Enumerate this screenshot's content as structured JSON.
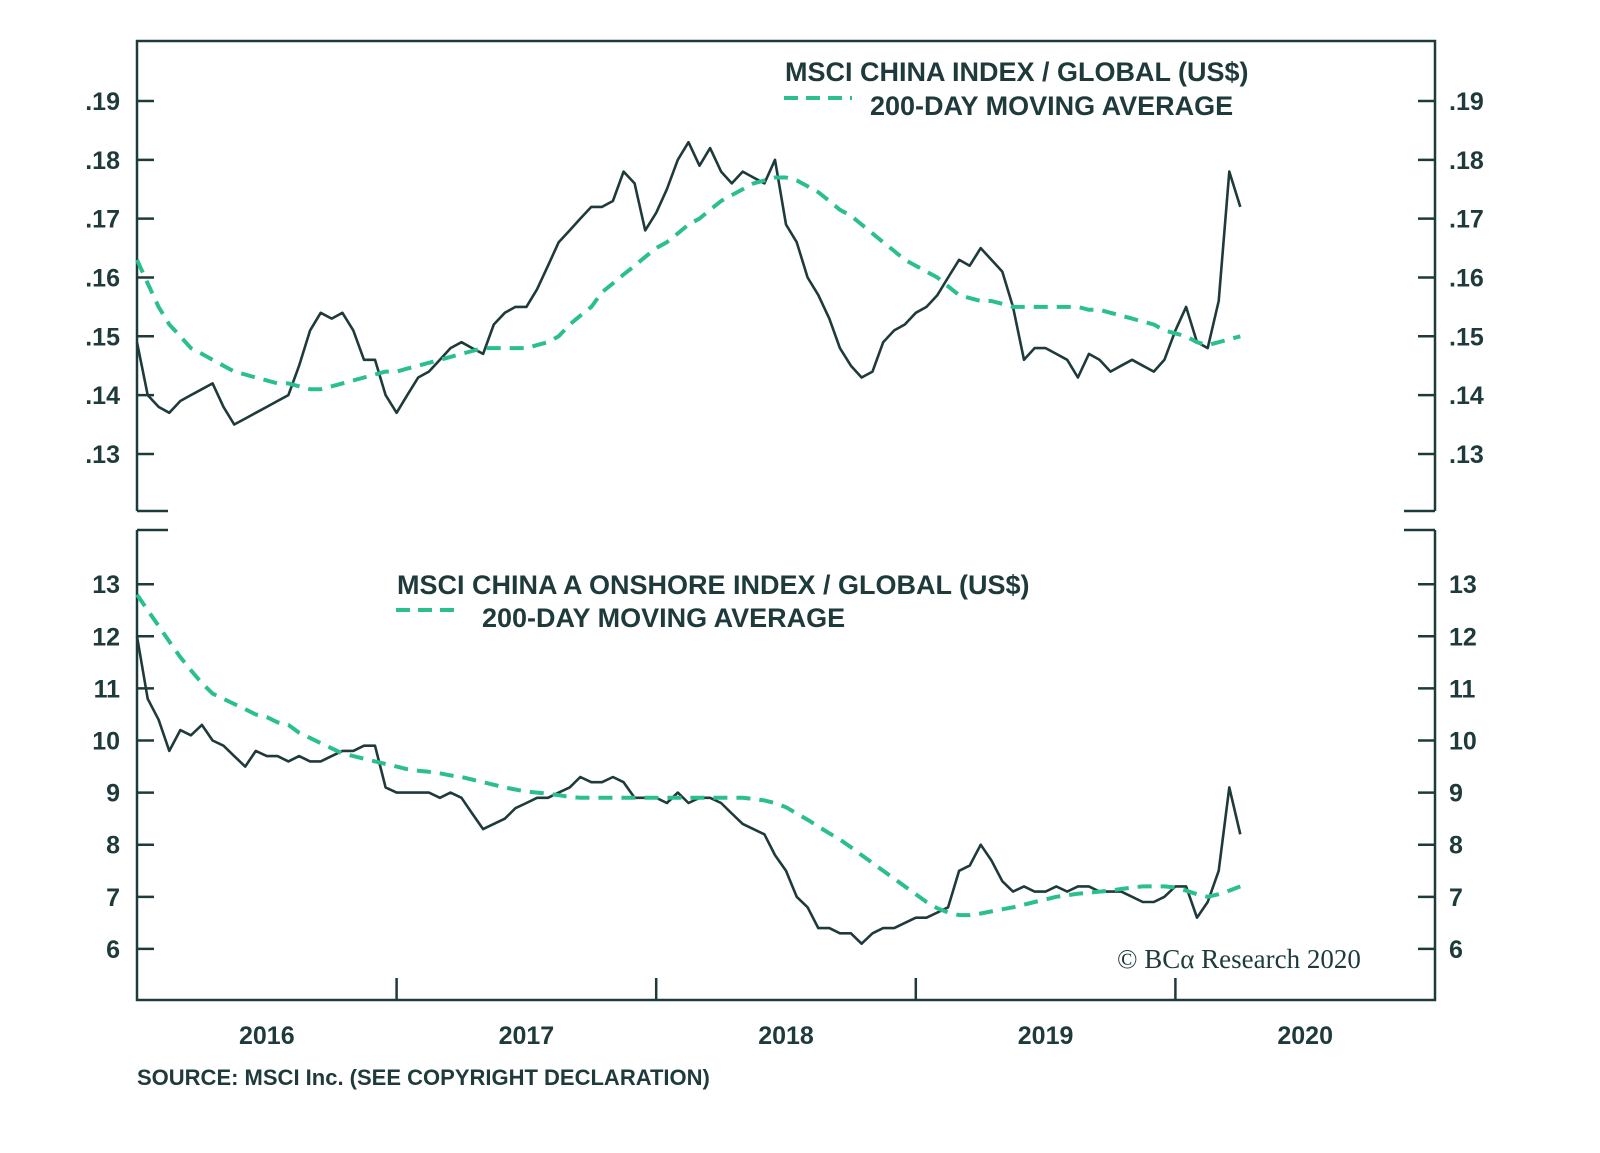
{
  "chart_data": [
    {
      "type": "line",
      "title": "",
      "legend": [
        "MSCI CHINA INDEX / GLOBAL (US$)",
        "200-DAY MOVING AVERAGE"
      ],
      "legend_placement": "top-right",
      "ylim": [
        0.1203,
        0.2002
      ],
      "xlim": [
        "2016-01-01",
        "2021-01-01"
      ],
      "yticks": [
        0.19,
        0.18,
        0.17,
        0.16,
        0.15,
        0.14,
        0.13
      ],
      "ytick_labels": [
        ".19",
        ".18",
        ".17",
        ".16",
        ".15",
        ".14",
        ".13"
      ],
      "grid": false,
      "series": [
        {
          "name": "MSCI CHINA INDEX / GLOBAL (US$)",
          "color": "#1e3a3b",
          "style": "solid",
          "values": [
            0.149,
            0.14,
            0.138,
            0.137,
            0.139,
            0.14,
            0.141,
            0.142,
            0.138,
            0.135,
            0.136,
            0.137,
            0.138,
            0.139,
            0.14,
            0.145,
            0.151,
            0.154,
            0.153,
            0.154,
            0.151,
            0.146,
            0.146,
            0.14,
            0.137,
            0.14,
            0.143,
            0.144,
            0.146,
            0.148,
            0.149,
            0.148,
            0.147,
            0.152,
            0.154,
            0.155,
            0.155,
            0.158,
            0.162,
            0.166,
            0.168,
            0.17,
            0.172,
            0.172,
            0.173,
            0.178,
            0.176,
            0.168,
            0.171,
            0.175,
            0.18,
            0.183,
            0.179,
            0.182,
            0.178,
            0.176,
            0.178,
            0.177,
            0.176,
            0.18,
            0.169,
            0.166,
            0.16,
            0.157,
            0.153,
            0.148,
            0.145,
            0.143,
            0.144,
            0.149,
            0.151,
            0.152,
            0.154,
            0.155,
            0.157,
            0.16,
            0.163,
            0.162,
            0.165,
            0.163,
            0.161,
            0.155,
            0.146,
            0.148,
            0.148,
            0.147,
            0.146,
            0.143,
            0.147,
            0.146,
            0.144,
            0.145,
            0.146,
            0.145,
            0.144,
            0.146,
            0.151,
            0.155,
            0.149,
            0.148,
            0.156,
            0.178,
            0.172
          ]
        },
        {
          "name": "200-DAY MOVING AVERAGE",
          "color": "#2bbf8e",
          "style": "dashed",
          "values": [
            0.163,
            0.159,
            0.155,
            0.152,
            0.15,
            0.148,
            0.147,
            0.146,
            0.145,
            0.144,
            0.1435,
            0.143,
            0.1425,
            0.142,
            0.142,
            0.1415,
            0.141,
            0.141,
            0.1415,
            0.142,
            0.1425,
            0.143,
            0.1435,
            0.144,
            0.144,
            0.1445,
            0.145,
            0.1455,
            0.146,
            0.1465,
            0.147,
            0.1475,
            0.148,
            0.148,
            0.148,
            0.148,
            0.148,
            0.1485,
            0.149,
            0.15,
            0.152,
            0.1535,
            0.155,
            0.1575,
            0.159,
            0.1605,
            0.162,
            0.1635,
            0.165,
            0.166,
            0.1675,
            0.169,
            0.17,
            0.1715,
            0.173,
            0.174,
            0.175,
            0.176,
            0.1765,
            0.177,
            0.177,
            0.1765,
            0.1755,
            0.1745,
            0.173,
            0.1715,
            0.1705,
            0.169,
            0.1675,
            0.166,
            0.1645,
            0.163,
            0.162,
            0.161,
            0.16,
            0.1585,
            0.157,
            0.1565,
            0.156,
            0.156,
            0.1555,
            0.155,
            0.155,
            0.155,
            0.155,
            0.155,
            0.155,
            0.155,
            0.1545,
            0.1545,
            0.154,
            0.1535,
            0.153,
            0.1525,
            0.152,
            0.151,
            0.1505,
            0.15,
            0.149,
            0.1485,
            0.149,
            0.1495,
            0.15
          ]
        }
      ]
    },
    {
      "type": "line",
      "title": "",
      "legend": [
        "MSCI CHINA A ONSHORE INDEX / GLOBAL (US$)",
        "200-DAY MOVING AVERAGE"
      ],
      "legend_placement": "top-center",
      "ylim": [
        5.02,
        14.04
      ],
      "xlim": [
        "2016-01-01",
        "2021-01-01"
      ],
      "yticks": [
        13,
        12,
        11,
        10,
        9,
        8,
        7,
        6
      ],
      "ytick_labels": [
        "13",
        "12",
        "11",
        "10",
        "9",
        "8",
        "7",
        "6"
      ],
      "xtick_labels": [
        "2016",
        "2017",
        "2018",
        "2019",
        "2020"
      ],
      "grid": false,
      "series": [
        {
          "name": "MSCI CHINA A ONSHORE INDEX / GLOBAL (US$)",
          "color": "#1e3a3b",
          "style": "solid",
          "values": [
            12.0,
            10.8,
            10.4,
            9.8,
            10.2,
            10.1,
            10.3,
            10.0,
            9.9,
            9.7,
            9.5,
            9.8,
            9.7,
            9.7,
            9.6,
            9.7,
            9.6,
            9.6,
            9.7,
            9.8,
            9.8,
            9.9,
            9.9,
            9.1,
            9.0,
            9.0,
            9.0,
            9.0,
            8.9,
            9.0,
            8.9,
            8.6,
            8.3,
            8.4,
            8.5,
            8.7,
            8.8,
            8.9,
            8.9,
            9.0,
            9.1,
            9.3,
            9.2,
            9.2,
            9.3,
            9.2,
            8.9,
            8.9,
            8.9,
            8.8,
            9.0,
            8.8,
            8.9,
            8.9,
            8.8,
            8.6,
            8.4,
            8.3,
            8.2,
            7.8,
            7.5,
            7.0,
            6.8,
            6.4,
            6.4,
            6.3,
            6.3,
            6.1,
            6.3,
            6.4,
            6.4,
            6.5,
            6.6,
            6.6,
            6.7,
            6.8,
            7.5,
            7.6,
            8.0,
            7.7,
            7.3,
            7.1,
            7.2,
            7.1,
            7.1,
            7.2,
            7.1,
            7.2,
            7.2,
            7.1,
            7.1,
            7.1,
            7.0,
            6.9,
            6.9,
            7.0,
            7.2,
            7.2,
            6.6,
            6.9,
            7.5,
            9.1,
            8.2
          ]
        },
        {
          "name": "200-DAY MOVING AVERAGE",
          "color": "#2bbf8e",
          "style": "dashed",
          "values": [
            12.8,
            12.5,
            12.2,
            11.9,
            11.6,
            11.35,
            11.1,
            10.9,
            10.8,
            10.7,
            10.6,
            10.5,
            10.45,
            10.35,
            10.3,
            10.15,
            10.05,
            9.95,
            9.85,
            9.75,
            9.7,
            9.65,
            9.6,
            9.55,
            9.5,
            9.45,
            9.42,
            9.4,
            9.37,
            9.33,
            9.3,
            9.25,
            9.2,
            9.15,
            9.1,
            9.06,
            9.02,
            9.0,
            8.98,
            8.95,
            8.92,
            8.9,
            8.9,
            8.9,
            8.9,
            8.9,
            8.9,
            8.9,
            8.9,
            8.9,
            8.9,
            8.9,
            8.9,
            8.9,
            8.9,
            8.9,
            8.9,
            8.88,
            8.85,
            8.8,
            8.72,
            8.6,
            8.48,
            8.35,
            8.22,
            8.1,
            7.95,
            7.8,
            7.65,
            7.5,
            7.35,
            7.2,
            7.05,
            6.9,
            6.78,
            6.7,
            6.65,
            6.65,
            6.68,
            6.72,
            6.76,
            6.8,
            6.85,
            6.9,
            6.95,
            7.0,
            7.03,
            7.06,
            7.08,
            7.1,
            7.12,
            7.15,
            7.18,
            7.2,
            7.2,
            7.2,
            7.18,
            7.12,
            7.05,
            7.0,
            7.05,
            7.12,
            7.2
          ]
        }
      ]
    }
  ],
  "dates": [
    "2016-01-01",
    "2016-01-16",
    "2016-02-01",
    "2016-02-16",
    "2016-03-01",
    "2016-03-16",
    "2016-04-01",
    "2016-04-16",
    "2016-05-01",
    "2016-05-16",
    "2016-06-01",
    "2016-06-16",
    "2016-07-01",
    "2016-07-16",
    "2016-08-01",
    "2016-08-16",
    "2016-09-01",
    "2016-09-16",
    "2016-10-01",
    "2016-10-16",
    "2016-11-01",
    "2016-11-16",
    "2016-12-01",
    "2016-12-16",
    "2017-01-01",
    "2017-01-16",
    "2017-02-01",
    "2017-02-16",
    "2017-03-01",
    "2017-03-16",
    "2017-04-01",
    "2017-04-16",
    "2017-05-01",
    "2017-05-16",
    "2017-06-01",
    "2017-06-16",
    "2017-07-01",
    "2017-07-16",
    "2017-08-01",
    "2017-08-16",
    "2017-09-01",
    "2017-09-16",
    "2017-10-01",
    "2017-10-16",
    "2017-11-01",
    "2017-11-16",
    "2017-12-01",
    "2017-12-16",
    "2018-01-01",
    "2018-01-16",
    "2018-02-01",
    "2018-02-16",
    "2018-03-01",
    "2018-03-16",
    "2018-04-01",
    "2018-04-16",
    "2018-05-01",
    "2018-05-16",
    "2018-06-01",
    "2018-06-16",
    "2018-07-01",
    "2018-07-16",
    "2018-08-01",
    "2018-08-16",
    "2018-09-01",
    "2018-09-16",
    "2018-10-01",
    "2018-10-16",
    "2018-11-01",
    "2018-11-16",
    "2018-12-01",
    "2018-12-16",
    "2019-01-01",
    "2019-01-16",
    "2019-02-01",
    "2019-02-16",
    "2019-03-01",
    "2019-03-16",
    "2019-04-01",
    "2019-04-16",
    "2019-05-01",
    "2019-05-16",
    "2019-06-01",
    "2019-06-16",
    "2019-07-01",
    "2019-07-16",
    "2019-08-01",
    "2019-08-16",
    "2019-09-01",
    "2019-09-16",
    "2019-10-01",
    "2019-10-16",
    "2019-11-01",
    "2019-11-16",
    "2019-12-01",
    "2019-12-16",
    "2020-01-01",
    "2020-01-16",
    "2020-02-01",
    "2020-02-16",
    "2020-03-01",
    "2020-03-16",
    "2020-04-01"
  ],
  "footer": {
    "source": "SOURCE: MSCI Inc. (SEE COPYRIGHT DECLARATION)",
    "copyright": "© BCα Research 2020"
  },
  "colors": {
    "price": "#1e3a3b",
    "moving_average": "#2bbf8e",
    "frame": "#1e3a3b"
  }
}
